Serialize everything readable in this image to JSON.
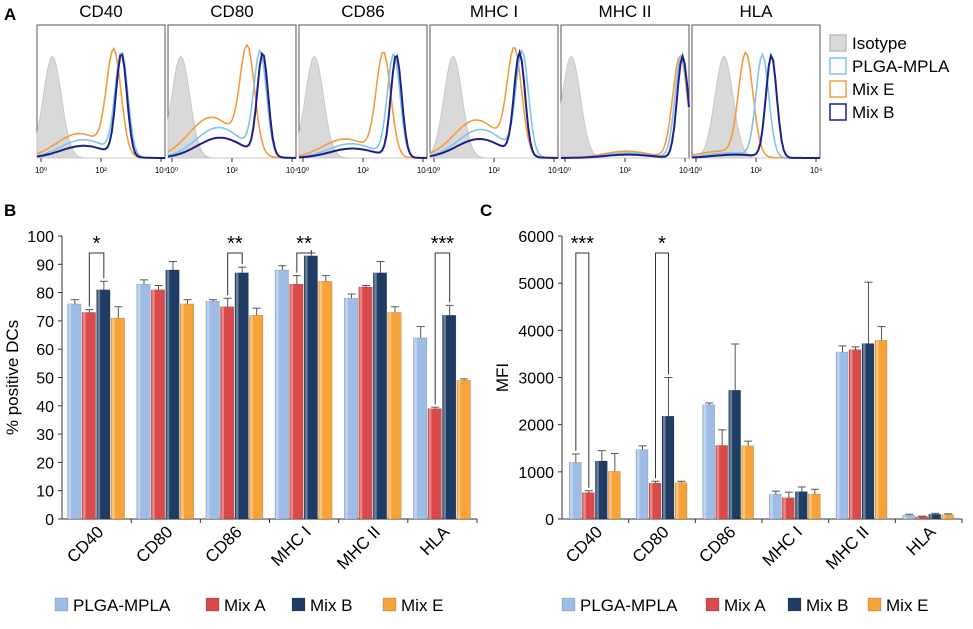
{
  "panel_labels": {
    "a": "A",
    "b": "B",
    "c": "C"
  },
  "colors": {
    "PLGA-MPLA": "#9dbde6",
    "Mix A": "#d94a4a",
    "Mix B": "#1f3c64",
    "Mix E": "#f7a339",
    "isotope_fill": "#d9d9d9",
    "hist_plga": "#7fc4ec",
    "hist_mixE": "#f79a3e",
    "hist_mixB": "#1c1f8a"
  },
  "histograms": {
    "panels": [
      "CD40",
      "CD80",
      "CD86",
      "MHC I",
      "MHC II",
      "HLA"
    ],
    "legend": [
      "Isotype",
      "PLGA-MPLA",
      "Mix E",
      "Mix B"
    ],
    "x_ticks": [
      "10⁰",
      "10²",
      "10⁴"
    ]
  },
  "chart_data": [
    {
      "type": "bar",
      "panel": "B",
      "title": "",
      "xlabel": "",
      "ylabel": "% positive DCs",
      "ylim": [
        0,
        100
      ],
      "yticks": [
        0,
        10,
        20,
        30,
        40,
        50,
        60,
        70,
        80,
        90,
        100
      ],
      "categories": [
        "CD40",
        "CD80",
        "CD86",
        "MHC I",
        "MHC II",
        "HLA"
      ],
      "series": [
        {
          "name": "PLGA-MPLA",
          "values": [
            76,
            83,
            77,
            88,
            78,
            64
          ],
          "errors": [
            1.5,
            1.5,
            0.5,
            1.5,
            1.5,
            4
          ]
        },
        {
          "name": "Mix A",
          "values": [
            73,
            81,
            75,
            83,
            82,
            39
          ],
          "errors": [
            1,
            1.5,
            3,
            3,
            0.5,
            0.5
          ]
        },
        {
          "name": "Mix B",
          "values": [
            81,
            88,
            87,
            93,
            87,
            72
          ],
          "errors": [
            3,
            3,
            2,
            1,
            4,
            3.5
          ]
        },
        {
          "name": "Mix E",
          "values": [
            71,
            76,
            72,
            84,
            73,
            49
          ],
          "errors": [
            4,
            1.5,
            2.5,
            2,
            2,
            0.5
          ]
        }
      ],
      "annotations": [
        {
          "category": "CD40",
          "from": "Mix A",
          "to": "Mix B",
          "label": "*"
        },
        {
          "category": "CD86",
          "from": "Mix A",
          "to": "Mix B",
          "label": "**"
        },
        {
          "category": "MHC I",
          "from": "Mix A",
          "to": "Mix B",
          "label": "**"
        },
        {
          "category": "HLA",
          "from": "Mix A",
          "to": "Mix B",
          "label": "***"
        }
      ],
      "legend": [
        "PLGA-MPLA",
        "Mix A",
        "Mix B",
        "Mix E"
      ]
    },
    {
      "type": "bar",
      "panel": "C",
      "title": "",
      "xlabel": "",
      "ylabel": "MFI",
      "ylim": [
        0,
        6000
      ],
      "yticks": [
        0,
        1000,
        2000,
        3000,
        4000,
        5000,
        6000
      ],
      "categories": [
        "CD40",
        "CD80",
        "CD86",
        "MHC I",
        "MHC II",
        "HLA"
      ],
      "series": [
        {
          "name": "PLGA-MPLA",
          "values": [
            1200,
            1470,
            2420,
            530,
            3540,
            80
          ],
          "errors": [
            180,
            80,
            40,
            60,
            130,
            20
          ]
        },
        {
          "name": "Mix A",
          "values": [
            560,
            760,
            1560,
            450,
            3590,
            50
          ],
          "errors": [
            40,
            40,
            330,
            120,
            60,
            10
          ]
        },
        {
          "name": "Mix B",
          "values": [
            1230,
            2180,
            2730,
            580,
            3720,
            100
          ],
          "errors": [
            220,
            820,
            980,
            100,
            1300,
            20
          ]
        },
        {
          "name": "Mix E",
          "values": [
            1010,
            770,
            1550,
            530,
            3790,
            90
          ],
          "errors": [
            380,
            30,
            100,
            100,
            290,
            20
          ]
        }
      ],
      "annotations": [
        {
          "category": "CD40",
          "from": "Mix A",
          "to": "PLGA-MPLA",
          "label": "***"
        },
        {
          "category": "CD80",
          "from": "Mix A",
          "to": "Mix B",
          "label": "*"
        }
      ],
      "legend": [
        "PLGA-MPLA",
        "Mix A",
        "Mix B",
        "Mix E"
      ]
    }
  ]
}
